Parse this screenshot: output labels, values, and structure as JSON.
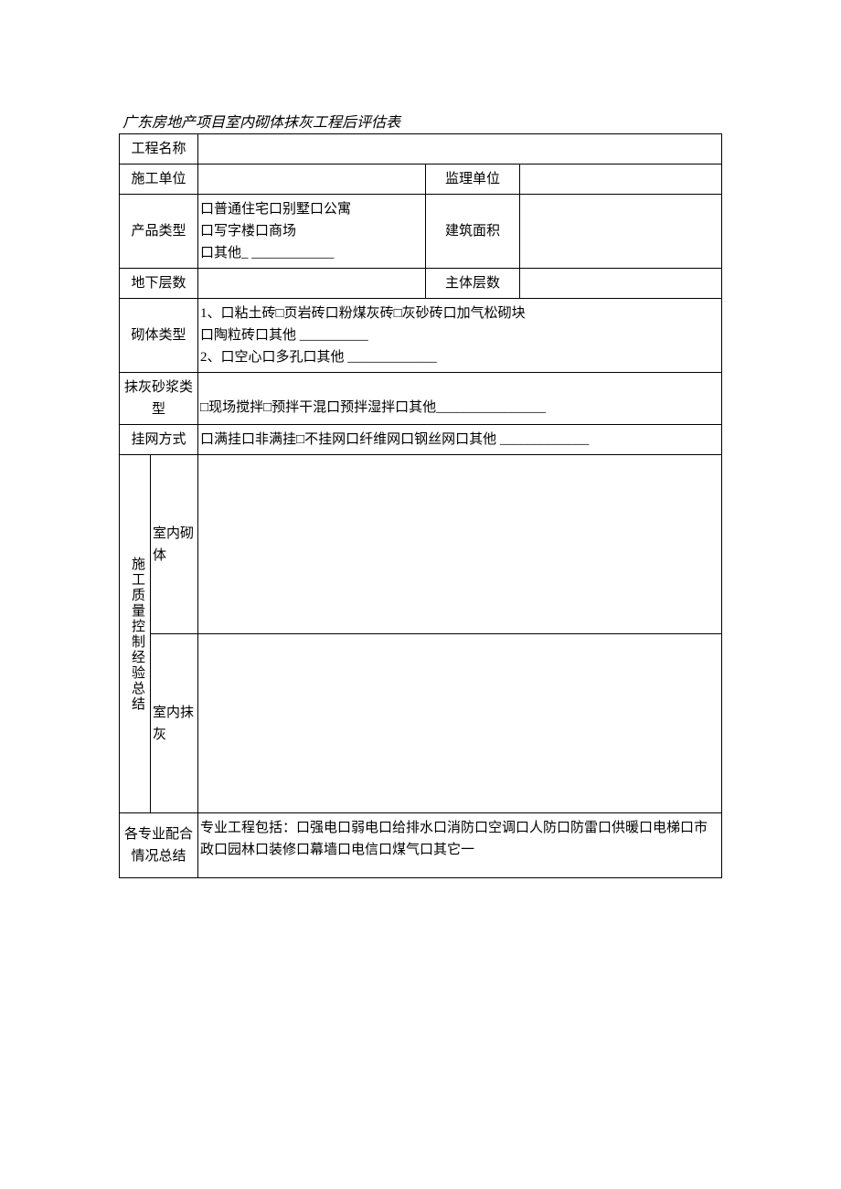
{
  "document": {
    "title": "广东房地产项目室内砌体抹灰工程后评估表",
    "table": {
      "columns": {
        "narrow_width": 34,
        "label1_width": 52,
        "content1_width": 249,
        "label3_width": 103
      },
      "rows": [
        {
          "label": "工程名称",
          "colspan_label": 2,
          "fields": [
            {
              "colspan": 3,
              "content": ""
            }
          ]
        },
        {
          "label": "施工单位",
          "colspan_label": 2,
          "fields": [
            {
              "content": ""
            },
            {
              "label": "监理单位"
            },
            {
              "content": ""
            }
          ]
        },
        {
          "label": "产品类型",
          "colspan_label": 2,
          "fields": [
            {
              "content": "口普通住宅口别墅口公寓\n口写字楼口商场\n口其他_ ____________"
            },
            {
              "label": "建筑面积"
            },
            {
              "content": ""
            }
          ]
        },
        {
          "label": "地下层数",
          "colspan_label": 2,
          "fields": [
            {
              "content": ""
            },
            {
              "label": "主体层数"
            },
            {
              "content": ""
            }
          ]
        },
        {
          "label": "砌体类型",
          "colspan_label": 2,
          "fields": [
            {
              "colspan": 3,
              "content": "1、口粘土砖□页岩砖口粉煤灰砖□灰砂砖口加气松砌块\n口陶粒砖口其他 __________\n2、口空心口多孔口其他 _____________"
            }
          ]
        },
        {
          "label": "抹灰砂浆类型",
          "colspan_label": 2,
          "fields": [
            {
              "colspan": 3,
              "content": "□现场搅拌□预拌干混口预拌湿拌口其他________________"
            }
          ]
        },
        {
          "label": "挂网方式",
          "colspan_label": 2,
          "fields": [
            {
              "colspan": 3,
              "content": "口满挂口非满挂□不挂网口纤维网口钢丝网口其他 _____________"
            }
          ]
        }
      ],
      "merged_section": {
        "vertical_label": "施工质量控制经验总结",
        "sub_rows": [
          {
            "sub_label": "室内砌体",
            "content": "",
            "height_class": "tall-row"
          },
          {
            "sub_label": "室内抹灰",
            "content": "",
            "height_class": "tall-row"
          }
        ]
      },
      "footer_row": {
        "label": "各专业配合情况总结",
        "content": "专业工程包括：口强电口弱电口给排水口消防口空调口人防口防雷口供暖口电梯口市政口园林口装修口幕墙口电信口煤气口其它一"
      }
    },
    "styling": {
      "font_family": "SimSun",
      "font_size_title": 16,
      "font_size_cell": 15,
      "title_style": "italic",
      "border_color": "#000000",
      "background_color": "#ffffff",
      "text_color": "#000000",
      "line_height": 1.6
    }
  }
}
